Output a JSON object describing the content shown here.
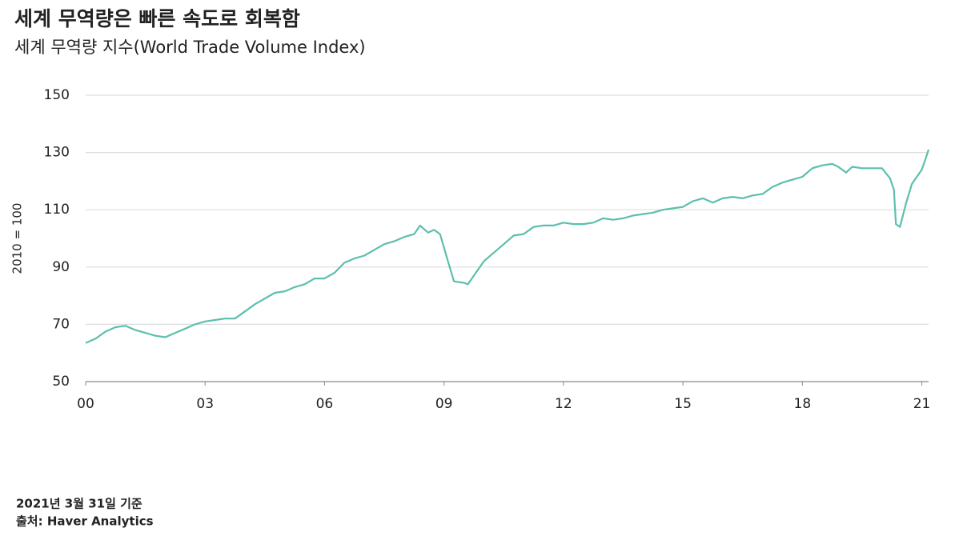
{
  "chart_data": {
    "type": "line",
    "title": "세계 무역량은 빠른 속도로 회복함",
    "subtitle": "세계 무역량 지수(World Trade Volume Index)",
    "ylabel": "2010 = 100",
    "notes": [
      "2021년 3월 31일 기준",
      "출처: Haver Analytics"
    ],
    "color": "#5cbfad",
    "grid": true,
    "xlim": [
      2000,
      2021.17
    ],
    "xticks": [
      {
        "value": 2000,
        "label": "00"
      },
      {
        "value": 2003,
        "label": "03"
      },
      {
        "value": 2006,
        "label": "06"
      },
      {
        "value": 2009,
        "label": "09"
      },
      {
        "value": 2012,
        "label": "12"
      },
      {
        "value": 2015,
        "label": "15"
      },
      {
        "value": 2018,
        "label": "18"
      },
      {
        "value": 2021,
        "label": "21"
      }
    ],
    "ylim": [
      50,
      150
    ],
    "yticks": [
      50,
      70,
      90,
      110,
      130,
      150
    ],
    "x": [
      2000,
      2000.25,
      2000.5,
      2000.75,
      2001,
      2001.25,
      2001.5,
      2001.75,
      2002,
      2002.25,
      2002.5,
      2002.75,
      2003,
      2003.25,
      2003.5,
      2003.75,
      2004,
      2004.25,
      2004.5,
      2004.75,
      2005,
      2005.25,
      2005.5,
      2005.75,
      2006,
      2006.25,
      2006.5,
      2006.75,
      2007,
      2007.25,
      2007.5,
      2007.75,
      2008,
      2008.25,
      2008.4,
      2008.6,
      2008.75,
      2008.9,
      2009.1,
      2009.25,
      2009.5,
      2009.6,
      2009.75,
      2010,
      2010.25,
      2010.5,
      2010.75,
      2011,
      2011.25,
      2011.5,
      2011.75,
      2012,
      2012.25,
      2012.5,
      2012.75,
      2013,
      2013.25,
      2013.5,
      2013.75,
      2014,
      2014.25,
      2014.5,
      2014.75,
      2015,
      2015.25,
      2015.5,
      2015.75,
      2016,
      2016.25,
      2016.5,
      2016.75,
      2017,
      2017.25,
      2017.5,
      2017.75,
      2018,
      2018.25,
      2018.5,
      2018.75,
      2018.9,
      2019.1,
      2019.25,
      2019.5,
      2019.75,
      2020,
      2020.2,
      2020.3,
      2020.35,
      2020.45,
      2020.6,
      2020.75,
      2021,
      2021.1,
      2021.17
    ],
    "values": [
      63.5,
      65,
      67.5,
      69,
      69.5,
      68,
      67,
      66,
      65.5,
      67,
      68.5,
      70,
      71,
      71.5,
      72,
      72,
      74.5,
      77,
      79,
      81,
      81.5,
      83,
      84,
      86,
      86,
      88,
      91.5,
      93,
      94,
      96,
      98,
      99,
      100.5,
      101.5,
      104.5,
      102,
      103,
      101.5,
      92,
      85,
      84.5,
      84,
      87,
      92,
      95,
      98,
      101,
      101.5,
      104,
      104.5,
      104.5,
      105.5,
      105,
      105,
      105.5,
      107,
      106.5,
      107,
      108,
      108.5,
      109,
      110,
      110.5,
      111,
      113,
      114,
      112.5,
      114,
      114.5,
      114,
      115,
      115.5,
      118,
      119.5,
      120.5,
      121.5,
      124.5,
      125.5,
      126,
      125,
      123,
      125,
      124.5,
      124.5,
      124.5,
      121,
      117,
      105,
      104,
      112,
      119,
      124,
      128,
      131
    ]
  }
}
